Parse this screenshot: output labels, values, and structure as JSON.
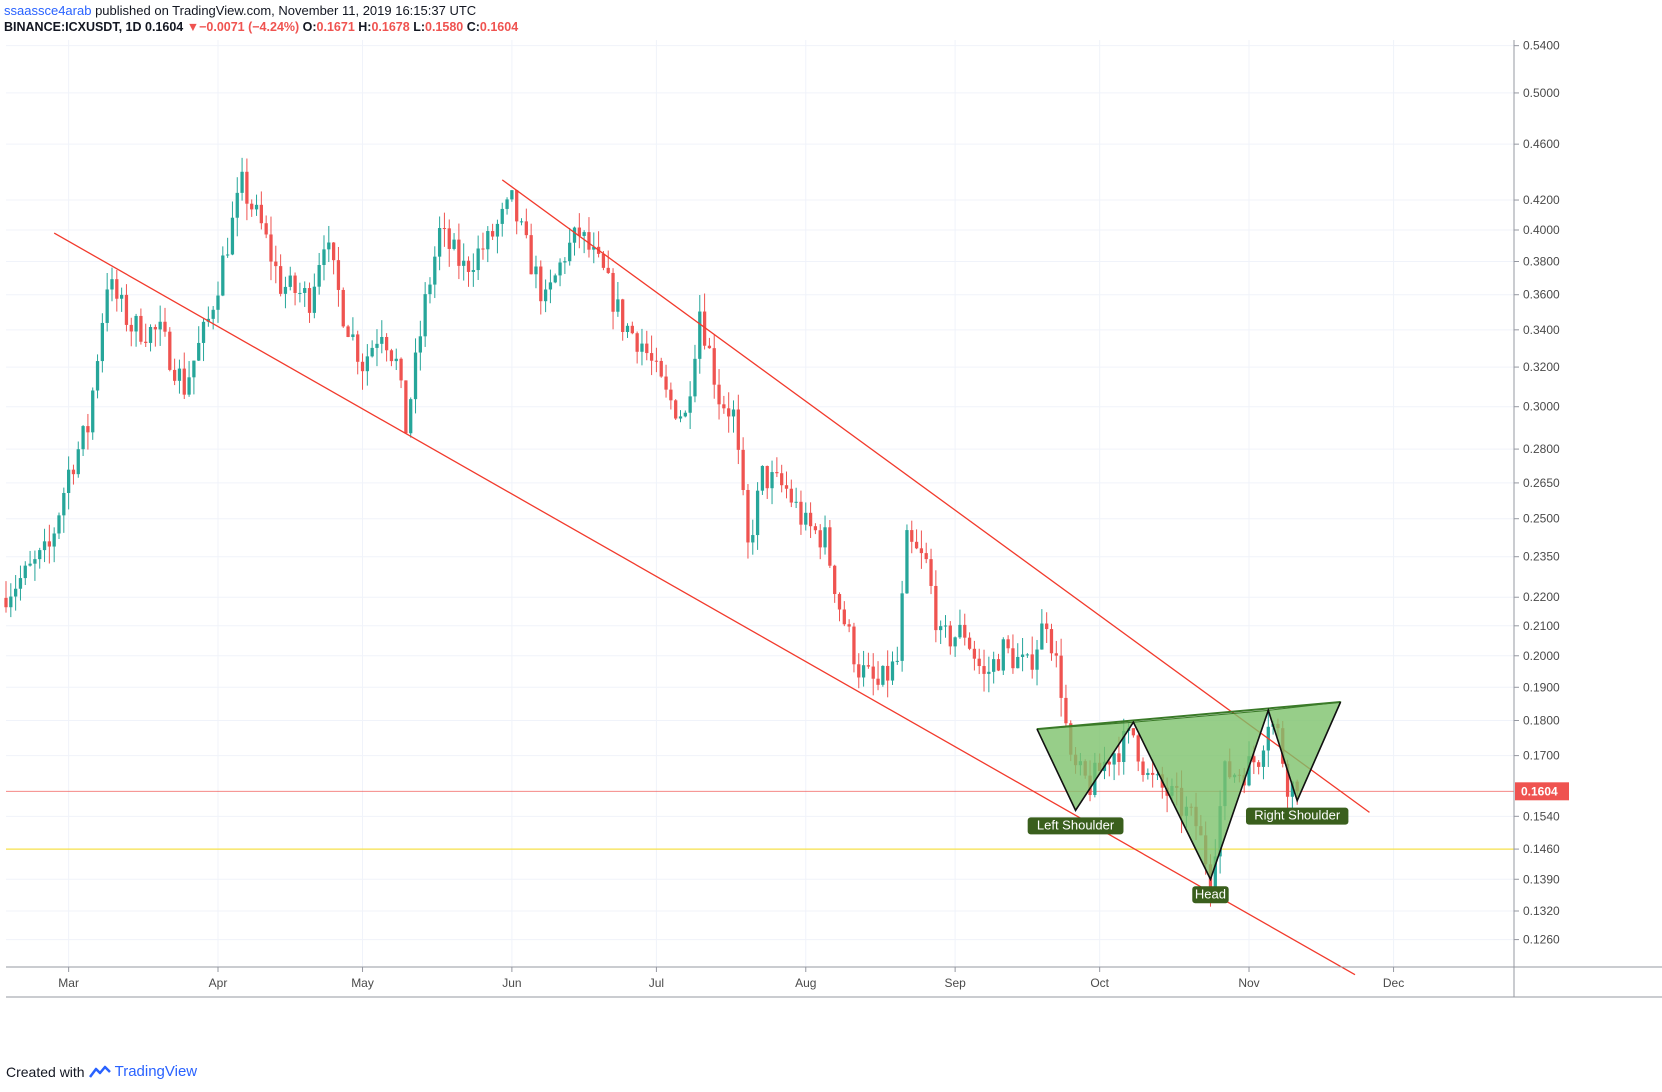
{
  "header": {
    "publisher": "ssaassce4arab",
    "published_text": "published on TradingView.com, November 11, 2019 16:15:37 UTC",
    "symbol": "BINANCE:ICXUSDT, 1D",
    "price": "0.1604",
    "change": "−0.0071 (−4.24%)",
    "o_label": "O:",
    "o": "0.1671",
    "h_label": "H:",
    "h": "0.1678",
    "l_label": "L:",
    "l": "0.1580",
    "c_label": "C:",
    "c": "0.1604"
  },
  "footer": {
    "created_with": "Created with",
    "brand": "TradingView"
  },
  "colors": {
    "up": "#26a69a",
    "down": "#ef5350",
    "trendline": "#f23a2c",
    "pattern_fill": "#7dc26b",
    "pattern_stroke": "#3a7a28",
    "label_bg": "#3a5f1d",
    "support": "#f7e24b",
    "price_line": "#ef5350"
  },
  "chart_data": {
    "type": "candlestick",
    "symbol": "BINANCE:ICXUSDT",
    "interval": "1D",
    "scale": "log",
    "y_ticks": [
      "0.5400",
      "0.5000",
      "0.4600",
      "0.4200",
      "0.4000",
      "0.3800",
      "0.3600",
      "0.3400",
      "0.3200",
      "0.3000",
      "0.2800",
      "0.2650",
      "0.2500",
      "0.2350",
      "0.2200",
      "0.2100",
      "0.2000",
      "0.1900",
      "0.1800",
      "0.1700",
      "0.1540",
      "0.1460",
      "0.1390",
      "0.1320",
      "0.1260"
    ],
    "x_ticks": [
      "Mar",
      "Apr",
      "May",
      "Jun",
      "Jul",
      "Aug",
      "Sep",
      "Oct",
      "Nov",
      "Dec"
    ],
    "x_tick_dates": [
      "2019-03-01",
      "2019-04-01",
      "2019-05-01",
      "2019-06-01",
      "2019-07-01",
      "2019-08-01",
      "2019-09-01",
      "2019-10-01",
      "2019-11-01",
      "2019-12-01"
    ],
    "x_range": [
      "2019-02-16",
      "2019-12-26"
    ],
    "y_range": [
      0.1205,
      0.545
    ],
    "last_price": "0.1604",
    "last_price_value": 0.1604,
    "support_level": 0.146,
    "close_keypoints": [
      [
        "2019-02-16",
        0.222
      ],
      [
        "2019-02-20",
        0.228
      ],
      [
        "2019-02-25",
        0.238
      ],
      [
        "2019-03-01",
        0.27
      ],
      [
        "2019-03-05",
        0.29
      ],
      [
        "2019-03-09",
        0.368
      ],
      [
        "2019-03-14",
        0.342
      ],
      [
        "2019-03-20",
        0.338
      ],
      [
        "2019-03-25",
        0.31
      ],
      [
        "2019-03-30",
        0.345
      ],
      [
        "2019-04-03",
        0.392
      ],
      [
        "2019-04-06",
        0.43
      ],
      [
        "2019-04-10",
        0.402
      ],
      [
        "2019-04-14",
        0.366
      ],
      [
        "2019-04-20",
        0.358
      ],
      [
        "2019-04-23",
        0.396
      ],
      [
        "2019-04-27",
        0.35
      ],
      [
        "2019-05-01",
        0.322
      ],
      [
        "2019-05-05",
        0.342
      ],
      [
        "2019-05-08",
        0.322
      ],
      [
        "2019-05-10",
        0.29
      ],
      [
        "2019-05-14",
        0.355
      ],
      [
        "2019-05-17",
        0.398
      ],
      [
        "2019-05-22",
        0.376
      ],
      [
        "2019-05-27",
        0.392
      ],
      [
        "2019-06-01",
        0.418
      ],
      [
        "2019-06-04",
        0.388
      ],
      [
        "2019-06-08",
        0.355
      ],
      [
        "2019-06-12",
        0.385
      ],
      [
        "2019-06-15",
        0.398
      ],
      [
        "2019-06-20",
        0.372
      ],
      [
        "2019-06-24",
        0.344
      ],
      [
        "2019-06-28",
        0.333
      ],
      [
        "2019-07-03",
        0.305
      ],
      [
        "2019-07-07",
        0.295
      ],
      [
        "2019-07-10",
        0.352
      ],
      [
        "2019-07-14",
        0.305
      ],
      [
        "2019-07-17",
        0.296
      ],
      [
        "2019-07-20",
        0.238
      ],
      [
        "2019-07-23",
        0.268
      ],
      [
        "2019-07-28",
        0.262
      ],
      [
        "2019-08-01",
        0.247
      ],
      [
        "2019-08-05",
        0.242
      ],
      [
        "2019-08-08",
        0.217
      ],
      [
        "2019-08-12",
        0.196
      ],
      [
        "2019-08-16",
        0.19
      ],
      [
        "2019-08-20",
        0.198
      ],
      [
        "2019-08-22",
        0.24
      ],
      [
        "2019-08-26",
        0.232
      ],
      [
        "2019-08-29",
        0.205
      ],
      [
        "2019-09-03",
        0.208
      ],
      [
        "2019-09-07",
        0.193
      ],
      [
        "2019-09-11",
        0.202
      ],
      [
        "2019-09-16",
        0.196
      ],
      [
        "2019-09-20",
        0.213
      ],
      [
        "2019-09-23",
        0.19
      ],
      [
        "2019-09-25",
        0.167
      ],
      [
        "2019-09-29",
        0.162
      ],
      [
        "2019-10-03",
        0.17
      ],
      [
        "2019-10-08",
        0.176
      ],
      [
        "2019-10-11",
        0.164
      ],
      [
        "2019-10-16",
        0.159
      ],
      [
        "2019-10-21",
        0.152
      ],
      [
        "2019-10-24",
        0.14
      ],
      [
        "2019-10-27",
        0.165
      ],
      [
        "2019-10-31",
        0.166
      ],
      [
        "2019-11-03",
        0.17
      ],
      [
        "2019-11-05",
        0.181
      ],
      [
        "2019-11-07",
        0.176
      ],
      [
        "2019-11-09",
        0.163
      ],
      [
        "2019-11-11",
        0.1604
      ]
    ],
    "trendlines": [
      {
        "name": "upper-channel-line",
        "from": [
          "2019-05-30",
          0.434
        ],
        "to": [
          "2019-11-26",
          0.155
        ]
      },
      {
        "name": "lower-channel-line",
        "from": [
          "2019-02-26",
          0.398
        ],
        "to": [
          "2019-11-23",
          0.119
        ]
      }
    ],
    "pattern": {
      "name": "inverse-head-and-shoulders",
      "neckline": {
        "from": [
          "2019-09-18",
          0.1775
        ],
        "to": [
          "2019-11-20",
          0.1855
        ]
      },
      "points": [
        [
          "2019-09-18",
          0.1775
        ],
        [
          "2019-09-26",
          0.1555
        ],
        [
          "2019-10-08",
          0.1795
        ],
        [
          "2019-10-24",
          0.139
        ],
        [
          "2019-11-05",
          0.183
        ],
        [
          "2019-11-11",
          0.158
        ],
        [
          "2019-11-20",
          0.1855
        ]
      ],
      "labels": [
        {
          "text": "Left Shoulder",
          "date": "2019-09-26",
          "price": 0.1555
        },
        {
          "text": "Head",
          "date": "2019-10-24",
          "price": 0.139
        },
        {
          "text": "Right Shoulder",
          "date": "2019-11-11",
          "price": 0.158
        }
      ]
    }
  }
}
